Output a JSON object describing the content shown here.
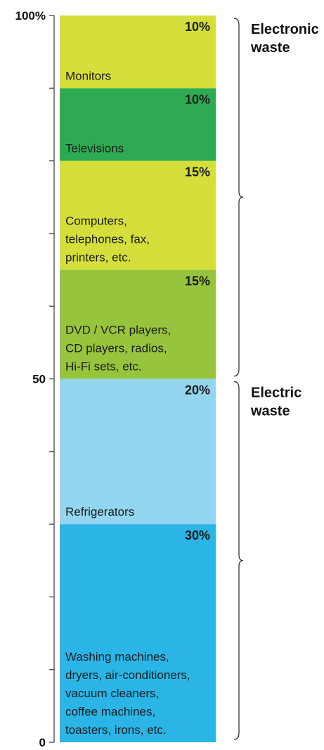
{
  "chart_data": {
    "type": "bar",
    "stacked": true,
    "orientation": "vertical",
    "ylim": [
      0,
      100
    ],
    "y_ticks": [
      {
        "value": 0,
        "label": "0"
      },
      {
        "value": 50,
        "label": "50"
      },
      {
        "value": 100,
        "label": "100%"
      }
    ],
    "minor_tick_step": 10,
    "grid": false,
    "segments": [
      {
        "value": 30,
        "pct_label": "30%",
        "lines": [
          "Washing machines,",
          "dryers, air-conditioners,",
          "vacuum cleaners,",
          "coffee machines,",
          "toasters, irons, etc."
        ],
        "color": "#2bb5e6"
      },
      {
        "value": 20,
        "pct_label": "20%",
        "lines": [
          "Refrigerators"
        ],
        "color": "#94d6f0"
      },
      {
        "value": 15,
        "pct_label": "15%",
        "lines": [
          "DVD / VCR players,",
          "CD players, radios,",
          "Hi-Fi sets, etc."
        ],
        "color": "#97c43d"
      },
      {
        "value": 15,
        "pct_label": "15%",
        "lines": [
          "Computers,",
          "telephones, fax,",
          "printers, etc."
        ],
        "color": "#d4df3c"
      },
      {
        "value": 10,
        "pct_label": "10%",
        "lines": [
          "Televisions"
        ],
        "color": "#2eab52"
      },
      {
        "value": 10,
        "pct_label": "10%",
        "lines": [
          "Monitors"
        ],
        "color": "#d4df3c"
      }
    ],
    "groups": [
      {
        "from": 50,
        "to": 100,
        "lines": [
          "Electronic",
          "waste"
        ]
      },
      {
        "from": 0,
        "to": 50,
        "lines": [
          "Electric",
          "waste"
        ]
      }
    ]
  }
}
